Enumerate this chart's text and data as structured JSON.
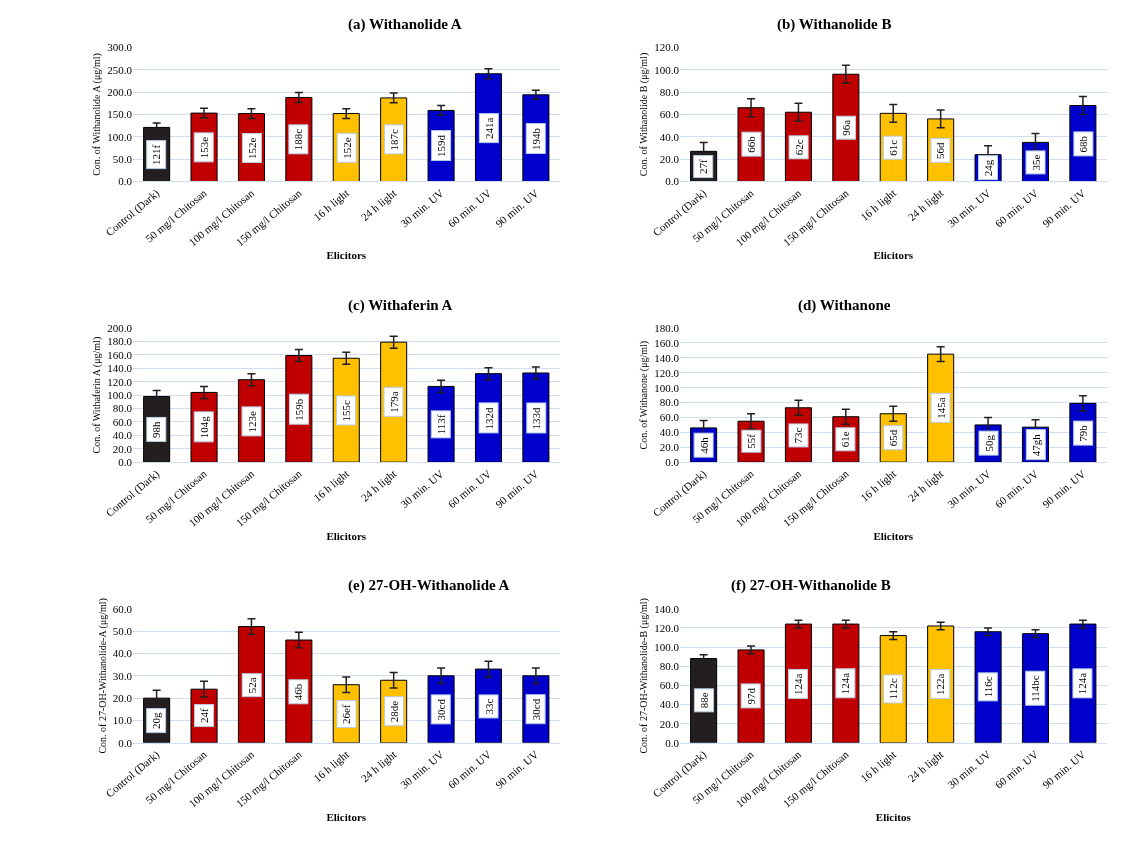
{
  "chart_data": [
    {
      "type": "bar",
      "title": "(a) Withanolide A",
      "xlabel": "Elicitors",
      "ylabel": "Con. of Withanolide A (μg/ml)",
      "categories": [
        "Control (Dark)",
        "50 mg/l Chitosan",
        "100 mg/l Chitosan",
        "150 mg/l Chitosan",
        "16 h light",
        "24 h light",
        "30 min. UV",
        "60 min. UV",
        "90 min. UV"
      ],
      "values": [
        121,
        153,
        152,
        188,
        152,
        187,
        159,
        241,
        194
      ],
      "value_labels": [
        "121f",
        "153e",
        "152e",
        "188c",
        "152e",
        "187c",
        "159d",
        "241a",
        "194b"
      ],
      "errors": [
        10,
        11,
        11,
        11,
        11,
        11,
        11,
        11,
        10
      ],
      "colors": [
        "#231f20",
        "#c00000",
        "#c00000",
        "#c00000",
        "#ffc000",
        "#ffc000",
        "#0000cc",
        "#0000cc",
        "#0000cc"
      ],
      "ylim": [
        0,
        300
      ],
      "yticks": [
        {
          "value": 0,
          "label": "0.0"
        },
        {
          "value": 50,
          "label": "50.0"
        },
        {
          "value": 100,
          "label": "100.0"
        },
        {
          "value": 150,
          "label": "150.0"
        },
        {
          "value": 200,
          "label": "200.0"
        },
        {
          "value": 250,
          "label": "250.0"
        },
        {
          "value": 300,
          "label": "300.0"
        }
      ],
      "grid": "y",
      "legend": false
    },
    {
      "type": "bar",
      "title": "(b) Withanolide B",
      "xlabel": "Elicitors",
      "ylabel": "Con. of Withanolide B (μg/ml)",
      "categories": [
        "Control (Dark)",
        "50 mg/l Chitosan",
        "100 mg/l Chitosan",
        "150 mg/l Chitosan",
        "16 h light",
        "24 h light",
        "30 min. UV",
        "60 min. UV",
        "90 min. UV"
      ],
      "values": [
        27,
        66,
        62,
        96,
        61,
        56,
        24,
        35,
        68
      ],
      "value_labels": [
        "27f",
        "66b",
        "62c",
        "96a",
        "61c",
        "56d",
        "24g",
        "35e",
        "68b"
      ],
      "errors": [
        8,
        8,
        8,
        8,
        8,
        8,
        8,
        8,
        8
      ],
      "colors": [
        "#231f20",
        "#c00000",
        "#c00000",
        "#c00000",
        "#ffc000",
        "#ffc000",
        "#0000cc",
        "#0000cc",
        "#0000cc"
      ],
      "ylim": [
        0,
        120
      ],
      "yticks": [
        {
          "value": 0,
          "label": "0.0"
        },
        {
          "value": 20,
          "label": "20.0"
        },
        {
          "value": 40,
          "label": "40.0"
        },
        {
          "value": 60,
          "label": "60.0"
        },
        {
          "value": 80,
          "label": "80.0"
        },
        {
          "value": 100,
          "label": "100.0"
        },
        {
          "value": 120,
          "label": "120.0"
        }
      ],
      "grid": "y",
      "legend": false
    },
    {
      "type": "bar",
      "title": "(c) Withaferin A",
      "xlabel": "Elicitors",
      "ylabel": "Con. of Withaferin A (μg/ml)",
      "categories": [
        "Control (Dark)",
        "50 mg/l Chitosan",
        "100 mg/l Chitosan",
        "150 mg/l Chitosan",
        "16 h light",
        "24 h light",
        "30 min. UV",
        "60 min. UV",
        "90 min. UV"
      ],
      "values": [
        98,
        104,
        123,
        159,
        155,
        179,
        113,
        132,
        133
      ],
      "value_labels": [
        "98h",
        "104g",
        "123e",
        "159b",
        "155c",
        "179a",
        "113f",
        "132d",
        "133d"
      ],
      "errors": [
        9,
        9,
        9,
        9,
        9,
        9,
        9,
        9,
        9
      ],
      "colors": [
        "#231f20",
        "#c00000",
        "#c00000",
        "#c00000",
        "#ffc000",
        "#ffc000",
        "#0000cc",
        "#0000cc",
        "#0000cc"
      ],
      "ylim": [
        0,
        200
      ],
      "yticks": [
        {
          "value": 0,
          "label": "0.0"
        },
        {
          "value": 20,
          "label": "20.0"
        },
        {
          "value": 40,
          "label": "40.0"
        },
        {
          "value": 60,
          "label": "60.0"
        },
        {
          "value": 80,
          "label": "80.0"
        },
        {
          "value": 100,
          "label": "100.0"
        },
        {
          "value": 120,
          "label": "120.0"
        },
        {
          "value": 140,
          "label": "140.0"
        },
        {
          "value": 160,
          "label": "160.0"
        },
        {
          "value": 180,
          "label": "180.0"
        },
        {
          "value": 200,
          "label": "200.0"
        }
      ],
      "grid": "y",
      "legend": false
    },
    {
      "type": "bar",
      "title": "(d) Withanone",
      "xlabel": "Elicitors",
      "ylabel": "Con. of Withanone (μg/ml)",
      "categories": [
        "Control (Dark)",
        "50 mg/l Chitosan",
        "100 mg/l Chitosan",
        "150 mg/l Chitosan",
        "16 h light",
        "24 h light",
        "30 min. UV",
        "60 min. UV",
        "90 min. UV"
      ],
      "values": [
        46,
        55,
        73,
        61,
        65,
        145,
        50,
        47,
        79
      ],
      "value_labels": [
        "46h",
        "55f",
        "73c",
        "61e",
        "65d",
        "145a",
        "50g",
        "47gh",
        "79b"
      ],
      "errors": [
        10,
        10,
        10,
        10,
        10,
        10,
        10,
        10,
        10
      ],
      "colors": [
        "#0000cc",
        "#c00000",
        "#c00000",
        "#c00000",
        "#ffc000",
        "#ffc000",
        "#0000cc",
        "#0000cc",
        "#0000cc"
      ],
      "ylim": [
        0,
        180
      ],
      "yticks": [
        {
          "value": 0,
          "label": "0.0"
        },
        {
          "value": 20,
          "label": "20.0"
        },
        {
          "value": 40,
          "label": "40.0"
        },
        {
          "value": 60,
          "label": "60.0"
        },
        {
          "value": 80,
          "label": "80.0"
        },
        {
          "value": 100,
          "label": "100.0"
        },
        {
          "value": 120,
          "label": "120.0"
        },
        {
          "value": 140,
          "label": "140.0"
        },
        {
          "value": 160,
          "label": "160.0"
        },
        {
          "value": 180,
          "label": "180.0"
        }
      ],
      "grid": "y",
      "legend": false
    },
    {
      "type": "bar",
      "title": "(e) 27-OH-Withanolide A",
      "xlabel": "Elicitors",
      "ylabel": "Con. of 27-OH-Withanolide-A (μg/ml)",
      "categories": [
        "Control (Dark)",
        "50 mg/l Chitosan",
        "100 mg/l Chitosan",
        "150 mg/l Chitosan",
        "16 h light",
        "24 h light",
        "30 min. UV",
        "60 min. UV",
        "90 min. UV"
      ],
      "values": [
        20,
        24,
        52,
        46,
        26,
        28,
        30,
        33,
        30
      ],
      "value_labels": [
        "20g",
        "24f",
        "52a",
        "46b",
        "26ef",
        "28de",
        "30cd",
        "33c",
        "30cd"
      ],
      "errors": [
        3.5,
        3.5,
        3.5,
        3.5,
        3.5,
        3.5,
        3.5,
        3.5,
        3.5
      ],
      "colors": [
        "#231f20",
        "#c00000",
        "#c00000",
        "#c00000",
        "#ffc000",
        "#ffc000",
        "#0000cc",
        "#0000cc",
        "#0000cc"
      ],
      "ylim": [
        0,
        60
      ],
      "yticks": [
        {
          "value": 0,
          "label": "0.0"
        },
        {
          "value": 10,
          "label": "10.0"
        },
        {
          "value": 20,
          "label": "20.0"
        },
        {
          "value": 30,
          "label": "30.0"
        },
        {
          "value": 40,
          "label": "40.0"
        },
        {
          "value": 50,
          "label": "50.0"
        },
        {
          "value": 60,
          "label": "60.0"
        }
      ],
      "grid": "y",
      "legend": false
    },
    {
      "type": "bar",
      "title": "(f) 27-OH-Withanolide B",
      "xlabel": "Elicitos",
      "ylabel": "Con. of 27-OH-Withanolide-B (μg/ml)",
      "categories": [
        "Control (Dark)",
        "50 mg/l Chitosan",
        "100 mg/l Chitosan",
        "150 mg/l Chitosan",
        "16 h light",
        "24 h light",
        "30 min. UV",
        "60 min. UV",
        "90 min. UV"
      ],
      "values": [
        88,
        97,
        124,
        124,
        112,
        122,
        116,
        114,
        124
      ],
      "value_labels": [
        "88e",
        "97d",
        "124a",
        "124a",
        "112c",
        "122a",
        "116c",
        "114bc",
        "124a"
      ],
      "errors": [
        4,
        4,
        4,
        4,
        4,
        4,
        4,
        4,
        4
      ],
      "colors": [
        "#231f20",
        "#c00000",
        "#c00000",
        "#c00000",
        "#ffc000",
        "#ffc000",
        "#0000cc",
        "#0000cc",
        "#0000cc"
      ],
      "ylim": [
        0,
        140
      ],
      "yticks": [
        {
          "value": 0,
          "label": "0.0"
        },
        {
          "value": 20,
          "label": "20.0"
        },
        {
          "value": 40,
          "label": "40.0"
        },
        {
          "value": 60,
          "label": "60.0"
        },
        {
          "value": 80,
          "label": "80.0"
        },
        {
          "value": 100,
          "label": "100.0"
        },
        {
          "value": 120,
          "label": "120.0"
        },
        {
          "value": 140,
          "label": "140.0"
        }
      ],
      "grid": "y",
      "legend": false
    }
  ]
}
